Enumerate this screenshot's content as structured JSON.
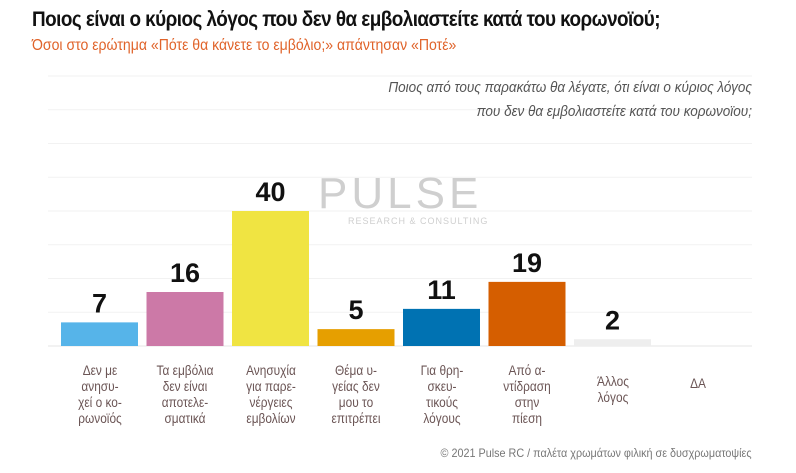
{
  "header": {
    "title": "Ποιος είναι ο κύριος λόγος που δεν θα εμβολιαστείτε κατά του κορωνοϊού;",
    "subtitle": "Όσοι στο ερώτημα «Πότε θα κάνετε το εμβόλιο;» απάντησαν «Ποτέ»"
  },
  "question": {
    "line1": "Ποιος από τους παρακάτω θα λέγατε, ότι είναι ο κύριος λόγος",
    "line2": "που δεν θα εμβολιαστείτε κατά του κορωνοϊου;"
  },
  "watermark": {
    "brand": "PULSE",
    "tagline": "RESEARCH & CONSULTING"
  },
  "footer": "© 2021 Pulse RC  /  παλέτα χρωμάτων φιλική σε δυσχρωματοψίες",
  "chart_data": {
    "type": "bar",
    "title": "Ποιος είναι ο κύριος λόγος που δεν θα εμβολιαστείτε κατά του κορωνοϊού;",
    "categories": [
      "Δεν με ανησυ- χεί ο κο- ρωνοϊός",
      "Τα εμβόλια δεν είναι αποτελε- σματικά",
      "Ανησυχία για παρε- νέργειες εμβολίων",
      "Θέμα υ- γείας δεν μου το επιτρέπει",
      "Για θρη- σκευ- τικούς λόγους",
      "Από α- ντίδραση στην πίεση",
      "Άλλος λόγος",
      "ΔΑ"
    ],
    "category_lines": [
      [
        "Δεν με",
        "ανησυ-",
        "χεί ο κο-",
        "ρωνοϊός"
      ],
      [
        "Τα εμβόλια",
        "δεν είναι",
        "αποτελε-",
        "σματικά"
      ],
      [
        "Ανησυχία",
        "για παρε-",
        "νέργειες",
        "εμβολίων"
      ],
      [
        "Θέμα υ-",
        "γείας δεν",
        "μου το",
        "επιτρέπει"
      ],
      [
        "Για θρη-",
        "σκευ-",
        "τικούς",
        "λόγους"
      ],
      [
        "Από α-",
        "ντίδραση",
        "στην",
        "πίεση"
      ],
      [
        "Άλλος",
        "λόγος"
      ],
      [
        "ΔΑ"
      ]
    ],
    "values": [
      7,
      16,
      40,
      5,
      11,
      19,
      2,
      0
    ],
    "labels": [
      "7",
      "16",
      "40",
      "5",
      "11",
      "19",
      "2",
      ""
    ],
    "colors": [
      "#56b4e9",
      "#cc79a7",
      "#f0e442",
      "#e69f00",
      "#0072b2",
      "#d55e00",
      "#eeeeee",
      "#eeeeee"
    ],
    "ylim": [
      0,
      80
    ],
    "grid": true,
    "xlabel": "",
    "ylabel": ""
  }
}
